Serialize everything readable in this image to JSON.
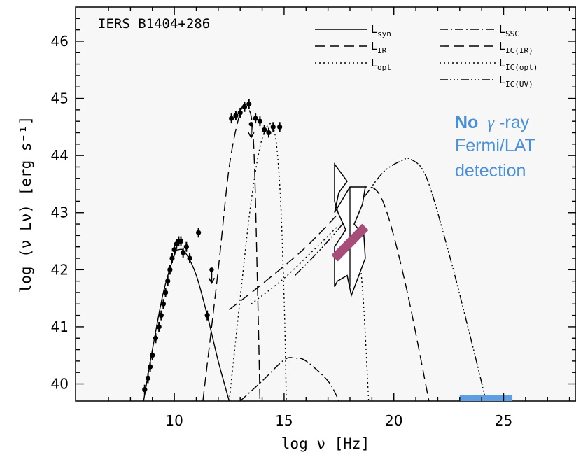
{
  "chart_data": {
    "type": "line",
    "source_name": "IERS B1404+286",
    "xlabel": "log ν [Hz]",
    "ylabel": "log (ν Lν) [erg s⁻¹]",
    "xlim": [
      5.5,
      28.3
    ],
    "ylim": [
      39.7,
      46.6
    ],
    "xticks": [
      10,
      15,
      20,
      25
    ],
    "yticks": [
      40,
      41,
      42,
      43,
      44,
      45,
      46
    ],
    "grid": false,
    "legend_position": "top-right",
    "colors": {
      "axes": "#000000",
      "annotation": "#4a90d9",
      "fermi_bar": "#5f9ee0",
      "xray_bowtie": "#a64d79",
      "background": "#f7f7f7"
    },
    "series": [
      {
        "name": "L_syn",
        "style": "solid",
        "x": [
          8.6,
          9.0,
          9.5,
          10.0,
          10.2,
          10.5,
          11.0,
          11.5,
          12.0,
          12.5
        ],
        "y": [
          39.7,
          40.6,
          41.6,
          42.25,
          42.35,
          42.3,
          41.9,
          41.2,
          40.4,
          39.7
        ]
      },
      {
        "name": "L_IR",
        "style": "dashed",
        "x": [
          11.3,
          12.0,
          12.5,
          13.0,
          13.3,
          13.6,
          13.8,
          13.9
        ],
        "y": [
          39.7,
          42.0,
          43.8,
          44.75,
          44.85,
          44.3,
          41.5,
          39.7
        ]
      },
      {
        "name": "L_opt",
        "style": "dotted",
        "x": [
          12.5,
          13.0,
          13.5,
          14.0,
          14.5,
          14.8,
          15.0,
          15.1
        ],
        "y": [
          39.7,
          41.5,
          43.2,
          44.3,
          44.5,
          43.5,
          41.5,
          39.7
        ]
      },
      {
        "name": "L_SSC",
        "style": "dash-dot",
        "x": [
          13.0,
          14.0,
          15.0,
          15.5,
          16.0,
          17.0,
          17.5
        ],
        "y": [
          39.7,
          40.05,
          40.42,
          40.45,
          40.4,
          40.05,
          39.7
        ]
      },
      {
        "name": "L_IC(IR)",
        "style": "dashed",
        "x": [
          12.5,
          14.0,
          16.0,
          18.0,
          18.7,
          19.5,
          20.5,
          21.6
        ],
        "y": [
          41.3,
          41.75,
          42.4,
          43.2,
          43.45,
          43.2,
          41.8,
          39.7
        ]
      },
      {
        "name": "L_IC(opt)",
        "style": "dotted",
        "x": [
          13.5,
          15.0,
          16.5,
          17.8,
          18.3,
          18.6,
          18.85
        ],
        "y": [
          41.4,
          41.85,
          42.4,
          42.85,
          42.6,
          41.5,
          39.7
        ]
      },
      {
        "name": "L_IC(UV)",
        "style": "dash-dot-dot-dot",
        "x": [
          15.5,
          17.0,
          18.5,
          19.5,
          20.3,
          20.8,
          21.5,
          22.5,
          23.5,
          24.2
        ],
        "y": [
          41.9,
          42.5,
          43.2,
          43.7,
          43.9,
          43.93,
          43.6,
          42.3,
          40.8,
          39.7
        ]
      }
    ],
    "data_points": [
      {
        "x": 8.65,
        "y": 39.9
      },
      {
        "x": 8.8,
        "y": 40.1
      },
      {
        "x": 8.9,
        "y": 40.3
      },
      {
        "x": 9.0,
        "y": 40.5
      },
      {
        "x": 9.15,
        "y": 40.8
      },
      {
        "x": 9.3,
        "y": 41.0
      },
      {
        "x": 9.4,
        "y": 41.2
      },
      {
        "x": 9.5,
        "y": 41.4
      },
      {
        "x": 9.6,
        "y": 41.6
      },
      {
        "x": 9.7,
        "y": 41.8
      },
      {
        "x": 9.8,
        "y": 42.0
      },
      {
        "x": 9.9,
        "y": 42.2
      },
      {
        "x": 10.0,
        "y": 42.35
      },
      {
        "x": 10.1,
        "y": 42.45
      },
      {
        "x": 10.2,
        "y": 42.5
      },
      {
        "x": 10.3,
        "y": 42.5
      },
      {
        "x": 10.4,
        "y": 42.3
      },
      {
        "x": 10.55,
        "y": 42.4
      },
      {
        "x": 10.7,
        "y": 42.2
      },
      {
        "x": 11.1,
        "y": 42.65
      },
      {
        "x": 11.5,
        "y": 41.2
      },
      {
        "x": 12.6,
        "y": 44.65
      },
      {
        "x": 12.8,
        "y": 44.7
      },
      {
        "x": 13.0,
        "y": 44.75
      },
      {
        "x": 13.2,
        "y": 44.85
      },
      {
        "x": 13.4,
        "y": 44.9
      },
      {
        "x": 13.7,
        "y": 44.65
      },
      {
        "x": 13.9,
        "y": 44.6
      },
      {
        "x": 14.1,
        "y": 44.45
      },
      {
        "x": 14.3,
        "y": 44.4
      },
      {
        "x": 14.5,
        "y": 44.5
      },
      {
        "x": 14.8,
        "y": 44.5
      }
    ],
    "upper_limits": [
      {
        "x": 11.7,
        "y": 42.0
      },
      {
        "x": 13.5,
        "y": 44.55
      }
    ],
    "xray_bowtie": {
      "x": [
        17.3,
        18.7
      ],
      "y": [
        42.2,
        42.75
      ]
    },
    "gamma_limit_bar": {
      "x": [
        23.0,
        25.4
      ],
      "y": 39.7
    },
    "annotation": {
      "bold": "No",
      "symbol": "γ",
      "line1_rest": "-ray",
      "line2": "Fermi/LAT",
      "line3": "detection"
    }
  },
  "legend": [
    {
      "label": "L",
      "sub": "syn",
      "style": "solid"
    },
    {
      "label": "L",
      "sub": "IR",
      "style": "dashed"
    },
    {
      "label": "L",
      "sub": "opt",
      "style": "dotted"
    },
    {
      "label": "L",
      "sub": "SSC",
      "style": "dash-dot"
    },
    {
      "label": "L",
      "sub": "IC(IR)",
      "style": "dashed"
    },
    {
      "label": "L",
      "sub": "IC(opt)",
      "style": "dotted"
    },
    {
      "label": "L",
      "sub": "IC(UV)",
      "style": "dash-dot-dot-dot"
    }
  ]
}
